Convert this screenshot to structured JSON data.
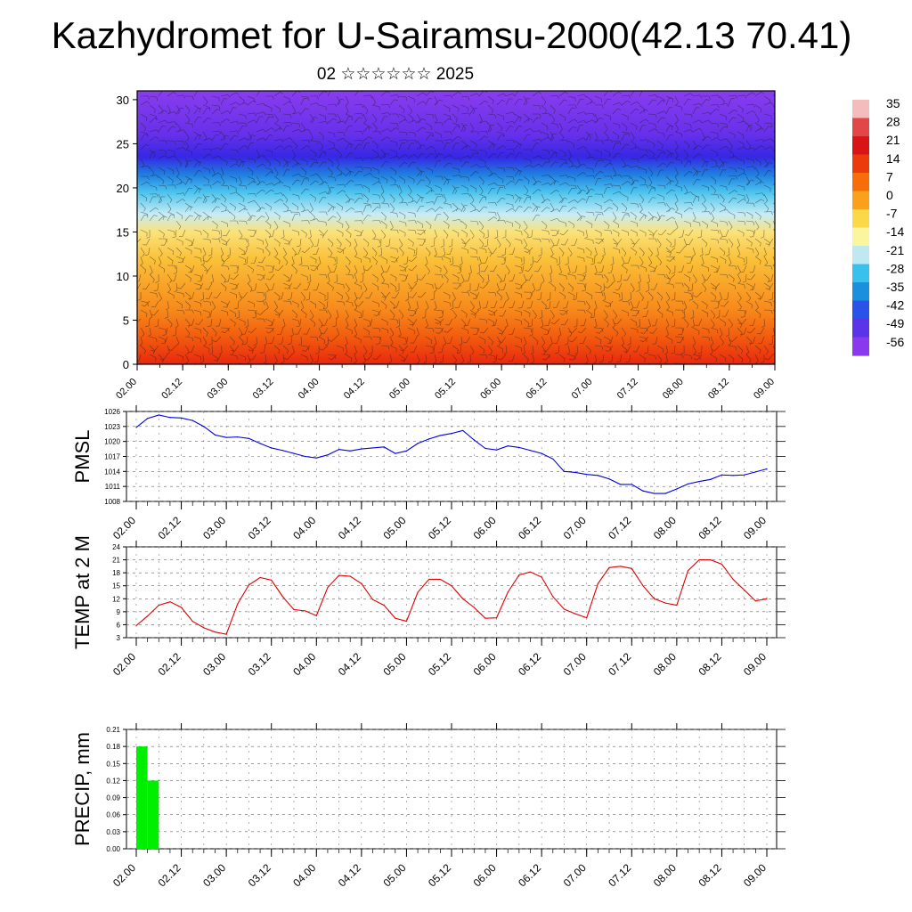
{
  "header": {
    "title": "Kazhydromet for U-Sairamsu-2000(42.13 70.41)",
    "date_line": "02 ☆☆☆☆☆☆ 2025"
  },
  "time_ticks": [
    "02.00",
    "02.12",
    "03.00",
    "03.12",
    "04.00",
    "04.12",
    "05.00",
    "05.12",
    "06.00",
    "06.12",
    "07.00",
    "07.12",
    "08.00",
    "08.12",
    "09.00"
  ],
  "chart_data": [
    {
      "type": "heatmap",
      "name": "temperature-wind-cross-section",
      "ylim": [
        0,
        31
      ],
      "yticks": [
        0,
        5,
        10,
        15,
        20,
        25,
        30
      ],
      "colorbar": {
        "labels": [
          "35",
          "28",
          "21",
          "14",
          "7",
          "0",
          "-7",
          "-14",
          "-21",
          "-28",
          "-35",
          "-42",
          "-49",
          "-56"
        ],
        "colors": [
          "#f4bcbc",
          "#e24646",
          "#d91414",
          "#ec3a0c",
          "#f66d0a",
          "#f9a11a",
          "#fad848",
          "#fbf5a0",
          "#bfe8f1",
          "#39c0ec",
          "#1a8fde",
          "#2b52e8",
          "#5b33e8",
          "#8a3aec"
        ]
      },
      "level_colors": [
        {
          "level": 0,
          "color": "#e8280e"
        },
        {
          "level": 3,
          "color": "#f25a0e"
        },
        {
          "level": 6,
          "color": "#f7871a"
        },
        {
          "level": 9,
          "color": "#f9a428"
        },
        {
          "level": 12,
          "color": "#fac23a"
        },
        {
          "level": 15,
          "color": "#fbe27a"
        },
        {
          "level": 17,
          "color": "#c8ecf4"
        },
        {
          "level": 19.5,
          "color": "#4cc4ee"
        },
        {
          "level": 21.5,
          "color": "#1f7fe0"
        },
        {
          "level": 23.5,
          "color": "#3528e4"
        },
        {
          "level": 26,
          "color": "#6630ea"
        },
        {
          "level": 31,
          "color": "#8a3cee"
        }
      ]
    },
    {
      "type": "line",
      "name": "pmsl",
      "ylabel": "PMSL",
      "ylim": [
        1008,
        1026
      ],
      "yticks": [
        1008,
        1011,
        1014,
        1017,
        1020,
        1023,
        1026
      ],
      "color": "#0000e0",
      "x": [
        0,
        3,
        6,
        9,
        12,
        15,
        18,
        21,
        24,
        27,
        30,
        33,
        36,
        39,
        42,
        45,
        48,
        51,
        54,
        57,
        60,
        63,
        66,
        69,
        72,
        75,
        78,
        81,
        84,
        87,
        90,
        93,
        96,
        99,
        102,
        105,
        108,
        111,
        114,
        117,
        120,
        123,
        126,
        129,
        132,
        135,
        138,
        141,
        144,
        147,
        150,
        153,
        156,
        159,
        162,
        165,
        168
      ],
      "values": [
        1022.8,
        1024.6,
        1025.3,
        1024.8,
        1024.7,
        1024.2,
        1023.0,
        1021.3,
        1020.8,
        1020.9,
        1020.6,
        1019.6,
        1018.7,
        1018.2,
        1017.6,
        1017.0,
        1016.7,
        1017.3,
        1018.4,
        1018.1,
        1018.5,
        1018.7,
        1018.9,
        1017.6,
        1018.1,
        1019.6,
        1020.5,
        1021.2,
        1021.6,
        1022.2,
        1020.3,
        1018.6,
        1018.3,
        1019.1,
        1018.8,
        1018.2,
        1017.6,
        1016.5,
        1014.0,
        1013.8,
        1013.4,
        1013.2,
        1012.5,
        1011.4,
        1011.4,
        1010.1,
        1009.6,
        1009.6,
        1010.5,
        1011.5,
        1012.0,
        1012.4,
        1013.3,
        1013.2,
        1013.3,
        1013.9,
        1014.5
      ]
    },
    {
      "type": "line",
      "name": "temp-2m",
      "ylabel": "TEMP at 2 M",
      "ylim": [
        3,
        24
      ],
      "yticks": [
        3,
        6,
        9,
        12,
        15,
        18,
        21,
        24
      ],
      "color": "#e00000",
      "x": [
        0,
        3,
        6,
        9,
        12,
        15,
        18,
        21,
        24,
        27,
        30,
        33,
        36,
        39,
        42,
        45,
        48,
        51,
        54,
        57,
        60,
        63,
        66,
        69,
        72,
        75,
        78,
        81,
        84,
        87,
        90,
        93,
        96,
        99,
        102,
        105,
        108,
        111,
        114,
        117,
        120,
        123,
        126,
        129,
        132,
        135,
        138,
        141,
        144,
        147,
        150,
        153,
        156,
        159,
        162,
        165,
        168
      ],
      "values": [
        5.8,
        8.0,
        10.5,
        11.3,
        10.0,
        6.8,
        5.3,
        4.3,
        3.8,
        10.8,
        15.2,
        16.9,
        16.3,
        12.5,
        9.5,
        9.2,
        8.1,
        14.6,
        17.4,
        17.2,
        15.5,
        11.8,
        10.5,
        7.5,
        6.8,
        13.5,
        16.5,
        16.5,
        15.0,
        12.0,
        10.0,
        7.5,
        7.6,
        13.5,
        17.5,
        18.2,
        17.0,
        12.5,
        9.6,
        8.5,
        7.6,
        15.5,
        19.2,
        19.5,
        19.0,
        15.0,
        12.0,
        11.0,
        10.5,
        18.5,
        21.0,
        21.0,
        20.0,
        16.5,
        14.0,
        11.5,
        12.0
      ]
    },
    {
      "type": "bar",
      "name": "precip",
      "ylabel": "PRECIP, mm",
      "ylim": [
        0,
        0.21
      ],
      "yticks": [
        "0.00",
        "0.03",
        "0.06",
        "0.09",
        "0.12",
        "0.15",
        "0.18",
        "0.21"
      ],
      "color": "#00ee00",
      "x_start": [
        0,
        3
      ],
      "x_end": [
        3,
        6
      ],
      "values": [
        0.18,
        0.12
      ]
    }
  ]
}
